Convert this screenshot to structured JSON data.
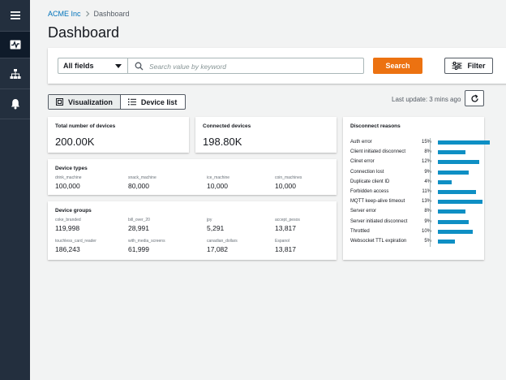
{
  "sidebar": {
    "items": [
      {
        "icon": "menu-icon"
      },
      {
        "icon": "pulse-icon",
        "active": true
      },
      {
        "icon": "hierarchy-icon"
      },
      {
        "icon": "bell-icon"
      }
    ]
  },
  "breadcrumb": {
    "root": "ACME Inc",
    "current": "Dashboard"
  },
  "page": {
    "title": "Dashboard"
  },
  "search": {
    "field_select": "All fields",
    "placeholder": "Search value by keyword",
    "search_label": "Search",
    "filter_label": "Filter"
  },
  "view_toggle": {
    "visualization": "Visualization",
    "device_list": "Device list"
  },
  "last_update": "Last update: 3 mins ago",
  "cards": {
    "total": {
      "title": "Total number of devices",
      "value": "200.00K"
    },
    "connected": {
      "title": "Connected devices",
      "value": "198.80K"
    },
    "device_types": {
      "title": "Device types",
      "items": [
        {
          "key": "drink_machine",
          "value": "100,000"
        },
        {
          "key": "snack_machine",
          "value": "80,000"
        },
        {
          "key": "ice_machine",
          "value": "10,000"
        },
        {
          "key": "coin_machines",
          "value": "10,000"
        }
      ]
    },
    "device_groups": {
      "title": "Device groups",
      "items": [
        {
          "key": "coke_branded",
          "value": "119,998"
        },
        {
          "key": "bill_over_20",
          "value": "28,991"
        },
        {
          "key": "jpy",
          "value": "5,291"
        },
        {
          "key": "accept_pesos",
          "value": "13,817"
        },
        {
          "key": "touchless_card_reader",
          "value": "186,243"
        },
        {
          "key": "with_media_screens",
          "value": "61,999"
        },
        {
          "key": "canadian_dollars",
          "value": "17,082"
        },
        {
          "key": "Espanol",
          "value": "13,817"
        }
      ]
    }
  },
  "chart_data": {
    "type": "bar",
    "title": "Disconnect reasons",
    "orientation": "horizontal",
    "categories": [
      "Auth error",
      "Client initiated disconnect",
      "Clinet error",
      "Connection lost",
      "Duplicate client ID",
      "Forbidden access",
      "MQTT keep-alive timeout",
      "Server error",
      "Server initiated disconnect",
      "Throttled",
      "Websocket TTL expiration"
    ],
    "labels": [
      "15%",
      "8%",
      "12%",
      "9%",
      "4%",
      "11%",
      "13%",
      "8%",
      "9%",
      "10%",
      "5%"
    ],
    "values": [
      15,
      8,
      12,
      9,
      4,
      11,
      13,
      8,
      9,
      10,
      5
    ],
    "xlim": [
      0,
      15
    ],
    "color": "#0e8fc4"
  },
  "colors": {
    "accent": "#ec7211",
    "link": "#0073bb",
    "sidebar": "#232f3e",
    "bar": "#0e8fc4"
  }
}
